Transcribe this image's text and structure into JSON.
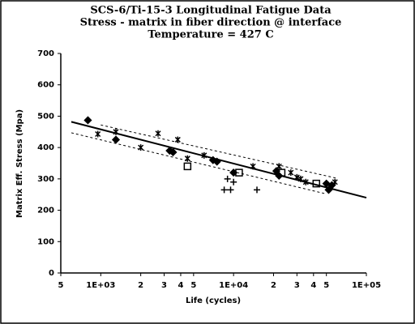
{
  "chart_data": {
    "type": "scatter",
    "title": [
      "SCS-6/Ti-15-3 Longitudinal Fatigue Data",
      "Stress - matrix in fiber direction @ interface",
      "Temperature = 427 C"
    ],
    "xlabel": "Life (cycles)",
    "ylabel": "Matrix Eff. Stress (Mpa)",
    "xscale": "log",
    "xlim": [
      500,
      100000
    ],
    "ylim": [
      0,
      700
    ],
    "xticks": [
      {
        "value": 500,
        "label": "5"
      },
      {
        "value": 1000,
        "label": "1E+03"
      },
      {
        "value": 2000,
        "label": "2"
      },
      {
        "value": 3000,
        "label": "3"
      },
      {
        "value": 4000,
        "label": "4"
      },
      {
        "value": 5000,
        "label": "5"
      },
      {
        "value": 10000,
        "label": "1E+04"
      },
      {
        "value": 20000,
        "label": "2"
      },
      {
        "value": 30000,
        "label": "3"
      },
      {
        "value": 40000,
        "label": "4"
      },
      {
        "value": 50000,
        "label": "5"
      },
      {
        "value": 100000,
        "label": "1E+05"
      }
    ],
    "yticks": [
      0,
      100,
      200,
      300,
      400,
      500,
      600,
      700
    ],
    "series": [
      {
        "marker": "diamond",
        "color": "#000000",
        "x": [
          800,
          1300,
          3300,
          3500,
          7000,
          7500,
          10000,
          21000,
          22000,
          50000,
          52000,
          55000
        ],
        "values": [
          487,
          425,
          390,
          385,
          360,
          355,
          320,
          325,
          310,
          285,
          265,
          280
        ]
      },
      {
        "marker": "cross",
        "color": "#000000",
        "x": [
          950,
          1300,
          2000,
          2700,
          3800,
          4500,
          6000,
          14000,
          22000,
          27000,
          30000,
          32000,
          35000,
          58000
        ],
        "values": [
          443,
          450,
          400,
          445,
          425,
          365,
          375,
          340,
          340,
          320,
          305,
          300,
          290,
          290
        ]
      },
      {
        "marker": "square",
        "color": "#000000",
        "x": [
          4500,
          11000,
          23000,
          42000
        ],
        "values": [
          340,
          320,
          320,
          285
        ]
      },
      {
        "marker": "plus",
        "color": "#000000",
        "x": [
          8500,
          9000,
          9500,
          10000,
          15000
        ],
        "values": [
          265,
          300,
          265,
          290,
          265
        ]
      }
    ],
    "lines": [
      {
        "style": "solid",
        "x": [
          600,
          100000
        ],
        "values": [
          482,
          240
        ]
      },
      {
        "style": "dashed",
        "x": [
          1000,
          60000
        ],
        "values": [
          472,
          302
        ]
      },
      {
        "style": "dashed",
        "x": [
          600,
          50000
        ],
        "values": [
          447,
          252
        ]
      }
    ]
  }
}
